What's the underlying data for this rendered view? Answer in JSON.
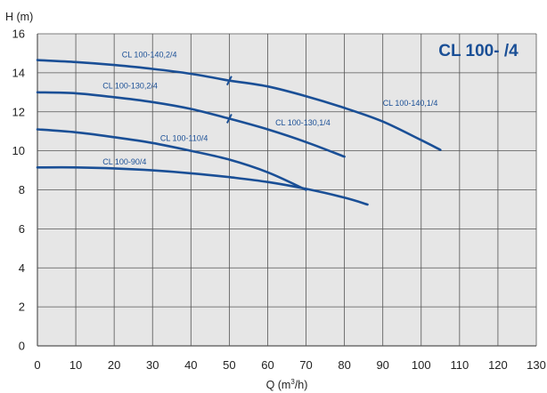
{
  "chart_data": {
    "type": "line",
    "title": "CL 100- /4",
    "ylabel": "H (m)",
    "xlabel_main": "Q (m",
    "xlabel_sup": "3",
    "xlabel_tail": "/h)",
    "xlim": [
      0,
      130
    ],
    "ylim": [
      0,
      16
    ],
    "x_ticks": [
      0,
      10,
      20,
      30,
      40,
      50,
      60,
      70,
      80,
      90,
      100,
      110,
      120,
      130
    ],
    "y_ticks": [
      0,
      2,
      4,
      6,
      8,
      10,
      12,
      14,
      16
    ],
    "grid": true,
    "colors": {
      "plot_bg": "#e6e6e6",
      "grid": "#555555",
      "curve": "#1a4f96",
      "title": "#1a4f96"
    },
    "series": [
      {
        "name": "CL 100-140,2/4",
        "x": [
          0,
          10,
          20,
          30,
          40,
          50
        ],
        "y": [
          14.65,
          14.55,
          14.4,
          14.2,
          13.95,
          13.6
        ],
        "label_at": [
          22,
          14.8
        ],
        "marker_at": 50
      },
      {
        "name": "CL 100-140,1/4",
        "x": [
          50,
          60,
          70,
          80,
          90,
          100,
          105
        ],
        "y": [
          13.6,
          13.3,
          12.8,
          12.2,
          11.5,
          10.55,
          10.05
        ],
        "label_at": [
          90,
          12.3
        ]
      },
      {
        "name": "CL 100-130,2/4",
        "x": [
          0,
          10,
          20,
          30,
          40,
          50
        ],
        "y": [
          13.0,
          12.95,
          12.75,
          12.5,
          12.15,
          11.65
        ],
        "label_at": [
          17,
          13.2
        ]
      },
      {
        "name": "CL 100-130,1/4",
        "x": [
          50,
          60,
          70,
          80
        ],
        "y": [
          11.65,
          11.1,
          10.45,
          9.7
        ],
        "label_at": [
          62,
          11.3
        ],
        "marker_at": 50
      },
      {
        "name": "CL 100-110/4",
        "x": [
          0,
          10,
          20,
          30,
          40,
          50,
          60,
          70
        ],
        "y": [
          11.1,
          10.95,
          10.7,
          10.4,
          10.0,
          9.55,
          8.9,
          8.0
        ],
        "label_at": [
          32,
          10.5
        ]
      },
      {
        "name": "CL 100-90/4",
        "x": [
          0,
          10,
          20,
          30,
          40,
          50,
          60,
          70,
          80,
          86
        ],
        "y": [
          9.15,
          9.15,
          9.1,
          9.0,
          8.85,
          8.65,
          8.4,
          8.05,
          7.6,
          7.25
        ],
        "label_at": [
          17,
          9.3
        ]
      }
    ]
  }
}
